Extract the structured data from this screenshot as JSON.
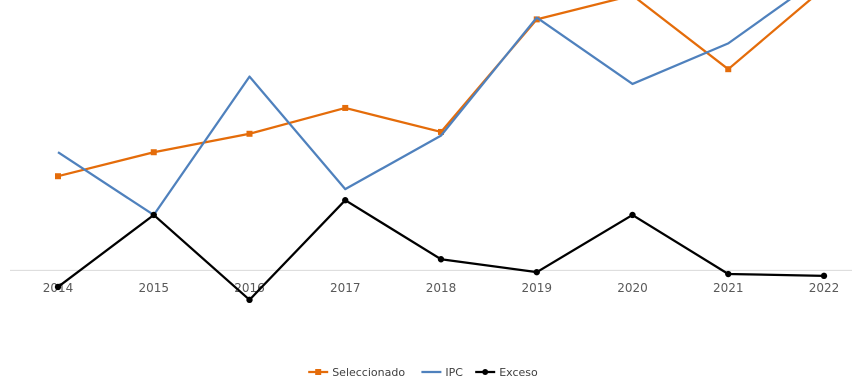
{
  "chart_data": {
    "type": "line",
    "title": "",
    "xlabel": "",
    "ylabel": "",
    "categories": [
      "2014",
      "2015",
      "2016",
      "2017",
      "2018",
      "2019",
      "2020",
      "2021",
      "2022"
    ],
    "ylim": [
      -1.5,
      14.0
    ],
    "grid": false,
    "legend_position": "bottom",
    "series": [
      {
        "name": "Seleccionado",
        "color": "#E46C0A",
        "marker": "square",
        "values": [
          5.1,
          6.4,
          7.4,
          8.8,
          7.5,
          13.6,
          14.9,
          10.9,
          15.3
        ]
      },
      {
        "name": "IPC",
        "color": "#4F81BD",
        "marker": "none",
        "values": [
          6.4,
          3.0,
          10.5,
          4.4,
          7.3,
          13.7,
          10.1,
          12.3,
          16.0
        ]
      },
      {
        "name": "Exceso",
        "color": "#000000",
        "marker": "circle",
        "values": [
          -0.9,
          3.0,
          -1.6,
          3.8,
          0.6,
          -0.1,
          3.0,
          -0.2,
          -0.3
        ]
      }
    ]
  }
}
